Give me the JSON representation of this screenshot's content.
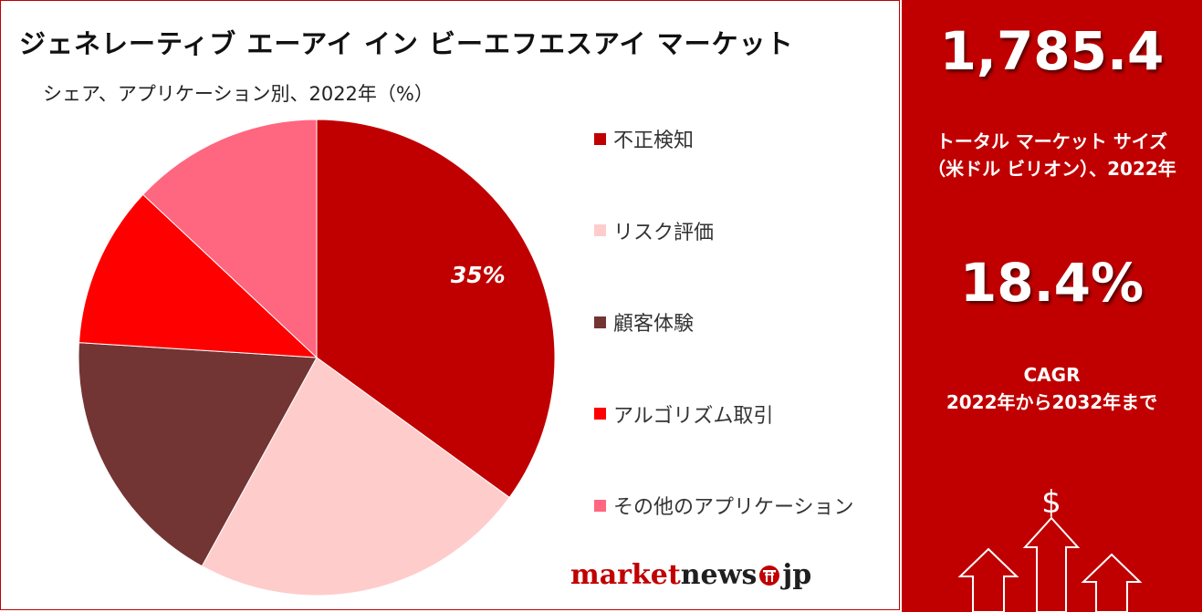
{
  "chart_data": {
    "type": "pie",
    "title": "ジェネレーティブ エーアイ イン ビーエフエスアイ マーケット",
    "subtitle": "シェア、アプリケーション別、2022年（%）",
    "categories": [
      "不正検知",
      "リスク評価",
      "顧客体験",
      "アルゴリズム取引",
      "その他のアプリケーション"
    ],
    "values": [
      35,
      23,
      18,
      11,
      13
    ],
    "colors": [
      "#c00000",
      "#ffcccc",
      "#733434",
      "#ff0000",
      "#ff6680"
    ],
    "data_labels": [
      {
        "category": "不正検知",
        "text": "35%"
      }
    ],
    "legend_position": "right"
  },
  "stats": {
    "market_size_value": "1,785.4",
    "market_size_label_line1": "トータル マーケット サイズ",
    "market_size_label_line2": "（米ドル ビリオン）、2022年",
    "cagr_value": "18.4%",
    "cagr_label_line1": "CAGR",
    "cagr_label_line2": "2022年から2032年まで",
    "dollar_symbol": "$"
  },
  "logo": {
    "part1": "market",
    "part2": "news",
    "part3": "jp",
    "icon": "torii-gate-icon"
  },
  "theme": {
    "accent": "#c00000"
  }
}
